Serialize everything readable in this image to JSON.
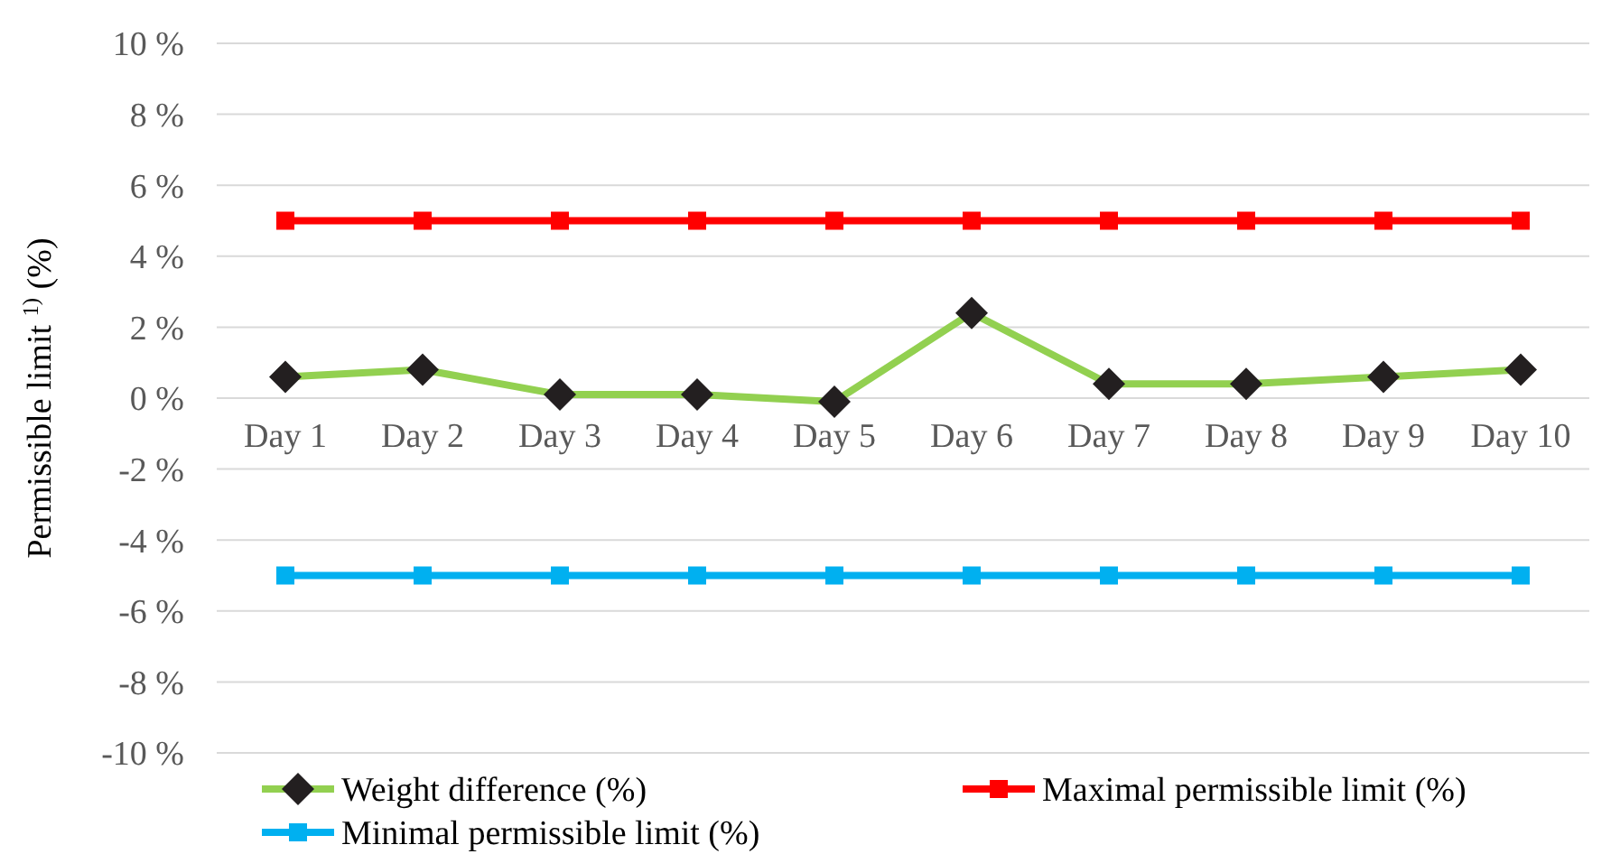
{
  "chart_data": {
    "type": "line",
    "ylabel": "Permissible limit $^{1)}$ (%)",
    "categories": [
      "Day 1",
      "Day 2",
      "Day 3",
      "Day 4",
      "Day 5",
      "Day 6",
      "Day 7",
      "Day 8",
      "Day 9",
      "Day 10"
    ],
    "series": [
      {
        "name": "Weight difference (%)",
        "color": "#92d050",
        "marker": "diamond",
        "values": [
          0.6,
          0.8,
          0.1,
          0.1,
          -0.1,
          2.4,
          0.4,
          0.4,
          0.6,
          0.8
        ]
      },
      {
        "name": "Maximal permissible limit (%)",
        "color": "#ff0000",
        "marker": "square",
        "values": [
          5,
          5,
          5,
          5,
          5,
          5,
          5,
          5,
          5,
          5
        ]
      },
      {
        "name": "Minimal permissible limit (%)",
        "color": "#00b0f0",
        "marker": "square",
        "values": [
          -5,
          -5,
          -5,
          -5,
          -5,
          -5,
          -5,
          -5,
          -5,
          -5
        ]
      }
    ],
    "ylim": [
      -10,
      10
    ],
    "yticks": [
      {
        "value": -10,
        "label": "-10 %"
      },
      {
        "value": -8,
        "label": "-8 %"
      },
      {
        "value": -6,
        "label": "-6 %"
      },
      {
        "value": -4,
        "label": "-4 %"
      },
      {
        "value": -2,
        "label": "-2 %"
      },
      {
        "value": 0,
        "label": "0 %"
      },
      {
        "value": 2,
        "label": "2 %"
      },
      {
        "value": 4,
        "label": "4 %"
      },
      {
        "value": 6,
        "label": "6 %"
      },
      {
        "value": 8,
        "label": "8 %"
      },
      {
        "value": 10,
        "label": "10 %"
      }
    ],
    "grid": "y",
    "legend": "bottom",
    "line_style": "solid"
  }
}
